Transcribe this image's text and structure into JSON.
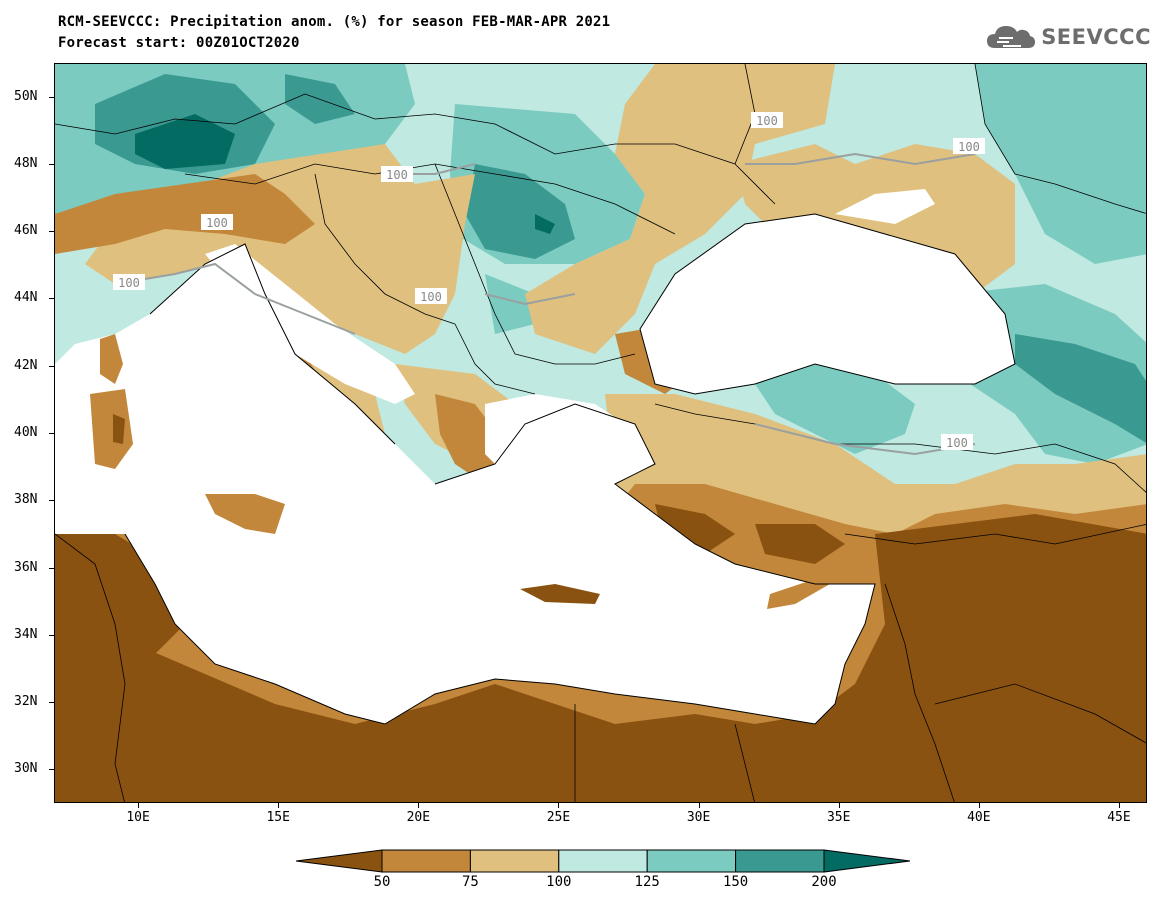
{
  "header": {
    "title_line1": "RCM-SEEVCCC: Precipitation anom. (%) for season FEB-MAR-APR 2021",
    "title_line2": "Forecast start: 00Z01OCT2020"
  },
  "logo": {
    "text": "SEEVCCC",
    "icon": "cloud-icon"
  },
  "map": {
    "lat_labels": [
      "50N",
      "48N",
      "46N",
      "44N",
      "42N",
      "40N",
      "38N",
      "36N",
      "34N",
      "32N",
      "30N"
    ],
    "lon_labels": [
      "10E",
      "15E",
      "20E",
      "25E",
      "30E",
      "35E",
      "40E",
      "45E"
    ],
    "contour_label": "100",
    "extent": {
      "lon": [
        7,
        46
      ],
      "lat": [
        29,
        51
      ]
    }
  },
  "colorbar": {
    "ticks": [
      "50",
      "75",
      "100",
      "125",
      "150",
      "200"
    ],
    "colors": [
      "#8a5210",
      "#c2873a",
      "#dfc07f",
      "#bfe9e1",
      "#7ccbc0",
      "#3a9a91",
      "#046b62"
    ]
  }
}
